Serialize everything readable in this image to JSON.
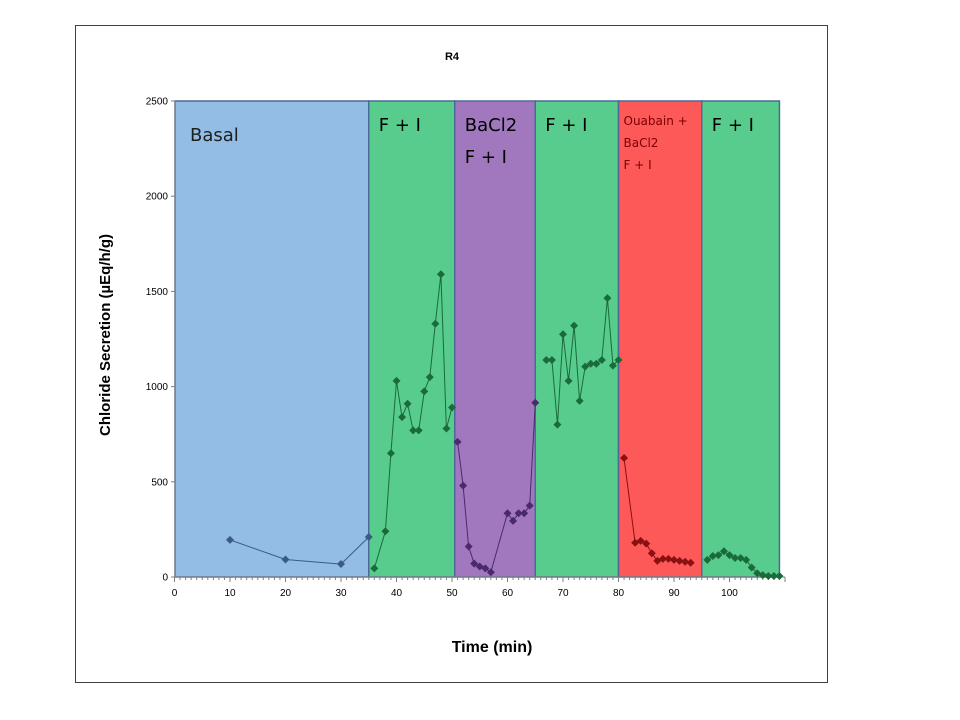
{
  "chart_data": {
    "type": "line",
    "title": "R4",
    "xlabel": "Time (min)",
    "ylabel": "Chloride Secretion (µEq/h/g)",
    "xlim": [
      0,
      110
    ],
    "ylim": [
      0,
      2500
    ],
    "x_ticks": [
      0,
      10,
      20,
      30,
      40,
      50,
      60,
      70,
      80,
      90,
      100
    ],
    "y_ticks": [
      0,
      500,
      1000,
      1500,
      2000,
      2500
    ],
    "legend": "none",
    "grid": false,
    "phases": [
      {
        "lines": [
          "Basal"
        ],
        "x_start": 0,
        "x_end": 35,
        "color": "#93bde4",
        "text_color": "#1f1f1f"
      },
      {
        "lines": [
          "F + I"
        ],
        "x_start": 35,
        "x_end": 50.5,
        "color": "#58cc8c",
        "text_color": "#000000"
      },
      {
        "lines": [
          "BaCl2",
          "F + I"
        ],
        "x_start": 50.5,
        "x_end": 65,
        "color": "#a178be",
        "text_color": "#000000"
      },
      {
        "lines": [
          "F + I"
        ],
        "x_start": 65,
        "x_end": 80,
        "color": "#58cc8c",
        "text_color": "#000000"
      },
      {
        "lines": [
          "Ouabain +",
          "BaCl2",
          "F + I"
        ],
        "x_start": 80,
        "x_end": 95,
        "color": "#fd5959",
        "text_color": "#7a0000"
      },
      {
        "lines": [
          "F + I"
        ],
        "x_start": 95,
        "x_end": 109,
        "color": "#58cc8c",
        "text_color": "#000000"
      }
    ],
    "series": [
      {
        "color": "#3b5b86",
        "points": [
          [
            10,
            195
          ],
          [
            20,
            92
          ],
          [
            30,
            68
          ],
          [
            35,
            210
          ]
        ]
      },
      {
        "color": "#1a6b3a",
        "points": [
          [
            36,
            45
          ],
          [
            38,
            240
          ],
          [
            39,
            650
          ],
          [
            40,
            1030
          ],
          [
            41,
            840
          ],
          [
            42,
            910
          ],
          [
            43,
            770
          ],
          [
            44,
            770
          ],
          [
            45,
            975
          ],
          [
            46,
            1050
          ],
          [
            47,
            1330
          ],
          [
            48,
            1590
          ],
          [
            49,
            780
          ],
          [
            50,
            890
          ]
        ]
      },
      {
        "color": "#4a2a6a",
        "points": [
          [
            51,
            710
          ],
          [
            52,
            480
          ],
          [
            53,
            160
          ],
          [
            54,
            70
          ],
          [
            55,
            55
          ],
          [
            56,
            45
          ],
          [
            57,
            25
          ],
          [
            60,
            335
          ],
          [
            61,
            295
          ],
          [
            62,
            335
          ],
          [
            63,
            335
          ],
          [
            64,
            375
          ],
          [
            65,
            915
          ]
        ]
      },
      {
        "color": "#1a6b3a",
        "points": [
          [
            67,
            1140
          ],
          [
            68,
            1140
          ],
          [
            69,
            800
          ],
          [
            70,
            1275
          ],
          [
            71,
            1030
          ],
          [
            72,
            1320
          ],
          [
            73,
            925
          ],
          [
            74,
            1105
          ],
          [
            75,
            1120
          ],
          [
            76,
            1120
          ],
          [
            77,
            1140
          ],
          [
            78,
            1465
          ],
          [
            79,
            1110
          ],
          [
            80,
            1140
          ]
        ]
      },
      {
        "color": "#8b1010",
        "points": [
          [
            81,
            625
          ],
          [
            83,
            180
          ],
          [
            84,
            190
          ],
          [
            85,
            175
          ],
          [
            86,
            125
          ],
          [
            87,
            85
          ],
          [
            88,
            95
          ],
          [
            89,
            95
          ],
          [
            90,
            90
          ],
          [
            91,
            85
          ],
          [
            92,
            80
          ],
          [
            93,
            75
          ]
        ]
      },
      {
        "color": "#1a6b3a",
        "points": [
          [
            96,
            90
          ],
          [
            97,
            110
          ],
          [
            98,
            115
          ],
          [
            99,
            135
          ],
          [
            100,
            115
          ],
          [
            101,
            100
          ],
          [
            102,
            100
          ],
          [
            103,
            90
          ],
          [
            104,
            50
          ],
          [
            105,
            20
          ],
          [
            106,
            10
          ],
          [
            107,
            5
          ],
          [
            108,
            5
          ],
          [
            109,
            5
          ]
        ]
      }
    ]
  }
}
